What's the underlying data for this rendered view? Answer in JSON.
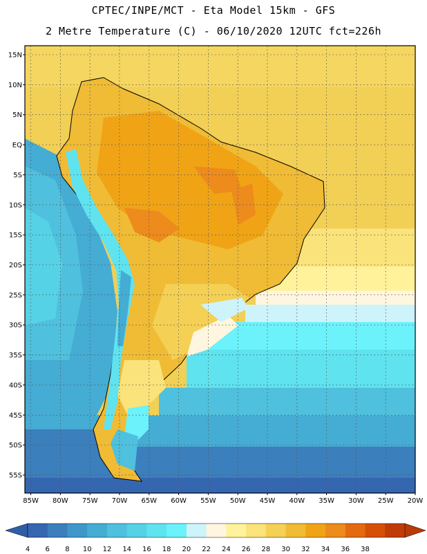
{
  "header": {
    "line1": "CPTEC/INPE/MCT -  Eta Model 15km - GFS",
    "line2": "2 Metre Temperature (C) - 06/10/2020 12UTC fct=226h"
  },
  "map": {
    "lat_labels": [
      "15N",
      "10N",
      "5N",
      "EQ",
      "5S",
      "10S",
      "15S",
      "20S",
      "25S",
      "30S",
      "35S",
      "40S",
      "45S",
      "50S",
      "55S"
    ],
    "lon_labels": [
      "85W",
      "80W",
      "75W",
      "70W",
      "65W",
      "60W",
      "55W",
      "50W",
      "45W",
      "40W",
      "35W",
      "30W",
      "25W",
      "20W"
    ],
    "lat_values": [
      15,
      10,
      5,
      0,
      -5,
      -10,
      -15,
      -20,
      -25,
      -30,
      -35,
      -40,
      -45,
      -50,
      -55
    ],
    "lon_values": [
      -85,
      -80,
      -75,
      -70,
      -65,
      -60,
      -55,
      -50,
      -45,
      -40,
      -35,
      -30,
      -25,
      -20
    ],
    "lat_range": [
      -58,
      16.5
    ],
    "lon_range": [
      -86,
      -20
    ]
  },
  "colorbar": {
    "labels": [
      "4",
      "6",
      "8",
      "10",
      "12",
      "14",
      "16",
      "18",
      "20",
      "22",
      "24",
      "26",
      "28",
      "30",
      "32",
      "34",
      "36",
      "38"
    ],
    "colors": [
      "#3566b0",
      "#3b7fbc",
      "#3f97c9",
      "#45acd4",
      "#4fc0dd",
      "#56d2e6",
      "#5fe3ef",
      "#6cf2fa",
      "#cdf3fb",
      "#fff6df",
      "#fff29a",
      "#fae37a",
      "#f4d055",
      "#f0bb35",
      "#f0a415",
      "#ed8b1c",
      "#e46a12",
      "#d54f07",
      "#c03c06"
    ],
    "left_arrow_color": "#2f5ea8",
    "right_arrow_color": "#b83a05"
  }
}
